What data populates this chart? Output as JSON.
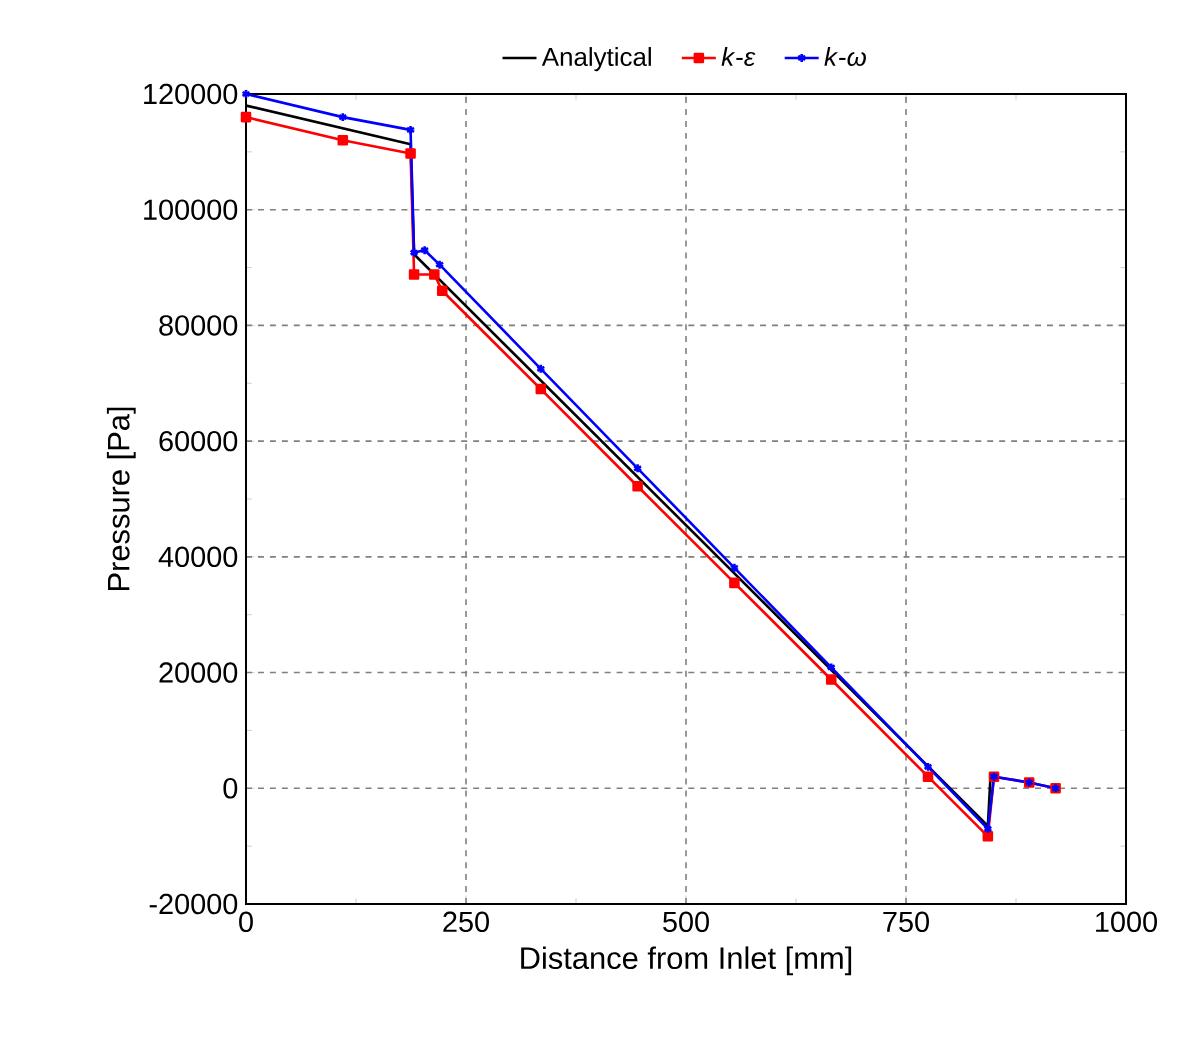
{
  "chart_data": {
    "type": "line",
    "xlabel": "Distance from Inlet [mm]",
    "ylabel": "Pressure [Pa]",
    "xlim": [
      0,
      1000
    ],
    "xticks": [
      0,
      250,
      500,
      750,
      1000
    ],
    "ylim": [
      -20000,
      120000
    ],
    "yticks": [
      -20000,
      0,
      20000,
      40000,
      60000,
      80000,
      100000,
      120000
    ],
    "grid": true,
    "legend": "top",
    "series": [
      {
        "name": "Analytical",
        "color": "#000000",
        "marker": "none",
        "x": [
          0,
          187,
          191,
          843,
          846
        ],
        "values": [
          118000,
          111300,
          92300,
          -6500,
          2000
        ]
      },
      {
        "name": "*k*-*ε*",
        "color": "#ff0000",
        "marker": "square",
        "x": [
          0,
          110,
          187,
          191,
          214,
          223,
          335,
          445,
          555,
          665,
          775,
          843,
          850,
          890,
          920
        ],
        "values": [
          116000,
          112000,
          109700,
          88800,
          88800,
          86000,
          69000,
          52200,
          35500,
          18800,
          2000,
          -8300,
          2000,
          1000,
          0
        ]
      },
      {
        "name": "*k*-*ω*",
        "color": "#0000ff",
        "marker": "cross",
        "x": [
          0,
          110,
          187,
          191,
          203,
          220,
          335,
          445,
          555,
          665,
          775,
          843,
          850,
          890,
          920
        ],
        "values": [
          120000,
          116000,
          113800,
          92600,
          93000,
          90500,
          72500,
          55300,
          38100,
          20900,
          3700,
          -7000,
          2000,
          1000,
          0
        ]
      }
    ]
  }
}
